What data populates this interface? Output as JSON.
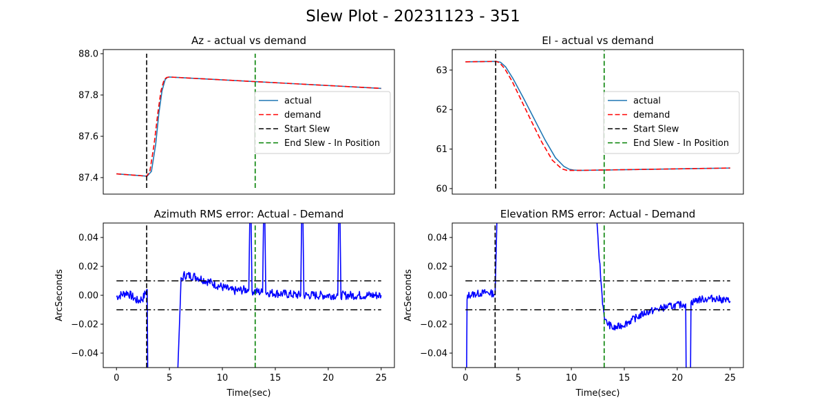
{
  "suptitle": "Slew Plot - 20231123 - 351",
  "chart_data": [
    {
      "id": "az_pos",
      "type": "line",
      "title": "Az - actual vs demand",
      "xlabel": "",
      "ylabel": "",
      "xlim": [
        -1.25,
        26.25
      ],
      "ylim": [
        87.32,
        88.02
      ],
      "xticks": [],
      "yticks": [
        87.4,
        87.6,
        87.8,
        88.0
      ],
      "ytick_labels": [
        "87.4",
        "87.6",
        "87.8",
        "88.0"
      ],
      "legend_location": "center right",
      "series": [
        {
          "name": "actual",
          "color": "#1f77b4",
          "style": "solid",
          "x": [
            0,
            2.9,
            3.3,
            3.7,
            4.0,
            4.3,
            4.6,
            4.8,
            5.0,
            25
          ],
          "y": [
            87.418,
            87.407,
            87.43,
            87.56,
            87.71,
            87.82,
            87.875,
            87.885,
            87.887,
            87.832
          ]
        },
        {
          "name": "demand",
          "color": "#ff0000",
          "style": "dashed",
          "x": [
            0,
            2.85,
            3.15,
            3.55,
            3.9,
            4.2,
            4.5,
            4.75,
            5.0,
            25
          ],
          "y": [
            87.418,
            87.407,
            87.43,
            87.56,
            87.71,
            87.82,
            87.875,
            87.885,
            87.887,
            87.832
          ]
        },
        {
          "name": "Start Slew",
          "color": "#000000",
          "style": "dashed",
          "x": [
            2.85,
            2.85
          ],
          "y": [
            87.35,
            88.0
          ]
        },
        {
          "name": "End Slew - In Position",
          "color": "#008000",
          "style": "dashed",
          "x": [
            13.1,
            13.1
          ],
          "y": [
            87.35,
            88.0
          ]
        }
      ]
    },
    {
      "id": "el_pos",
      "type": "line",
      "title": "El - actual vs demand",
      "xlabel": "",
      "ylabel": "",
      "xlim": [
        -1.25,
        26.25
      ],
      "ylim": [
        59.86,
        63.52
      ],
      "xticks": [],
      "yticks": [
        60,
        61,
        62,
        63
      ],
      "ytick_labels": [
        "60",
        "61",
        "62",
        "63"
      ],
      "legend_location": "center right",
      "series": [
        {
          "name": "actual",
          "color": "#1f77b4",
          "style": "solid",
          "x": [
            0,
            2.9,
            3.3,
            3.8,
            4.5,
            5.5,
            6.5,
            7.5,
            8.5,
            9.3,
            9.8,
            10.2,
            10.7,
            25
          ],
          "y": [
            63.21,
            63.22,
            63.2,
            63.08,
            62.78,
            62.28,
            61.76,
            61.24,
            60.78,
            60.56,
            60.49,
            60.47,
            60.46,
            60.52
          ]
        },
        {
          "name": "demand",
          "color": "#ff0000",
          "style": "dashed",
          "x": [
            0,
            2.9,
            3.2,
            3.7,
            4.4,
            5.3,
            6.2,
            7.2,
            8.2,
            9.1,
            9.6,
            10.0,
            10.5,
            25
          ],
          "y": [
            63.21,
            63.22,
            63.19,
            63.04,
            62.72,
            62.22,
            61.72,
            61.18,
            60.72,
            60.5,
            60.46,
            60.46,
            60.46,
            60.52
          ]
        },
        {
          "name": "Start Slew",
          "color": "#000000",
          "style": "dashed",
          "x": [
            2.85,
            2.85
          ],
          "y": [
            60.0,
            63.5
          ]
        },
        {
          "name": "End Slew - In Position",
          "color": "#008000",
          "style": "dashed",
          "x": [
            13.1,
            13.1
          ],
          "y": [
            60.0,
            63.5
          ]
        }
      ]
    },
    {
      "id": "az_err",
      "type": "line",
      "title": "Azimuth RMS error: Actual - Demand",
      "xlabel": "Time(sec)",
      "ylabel": "ArcSeconds",
      "xlim": [
        -1.25,
        26.25
      ],
      "ylim": [
        -0.05,
        0.05
      ],
      "xticks": [
        0,
        5,
        10,
        15,
        20,
        25
      ],
      "xtick_labels": [
        "0",
        "5",
        "10",
        "15",
        "20",
        "25"
      ],
      "yticks": [
        -0.04,
        -0.02,
        0.0,
        0.02,
        0.04
      ],
      "ytick_labels": [
        "−0.04",
        "−0.02",
        "0.00",
        "0.02",
        "0.04"
      ],
      "series": [
        {
          "name": "",
          "color": "#0000ff",
          "style": "solid",
          "noise_seed": 7,
          "x": [
            0,
            1.0,
            2.0,
            2.5,
            2.9,
            2.95,
            3.0,
            3.05,
            3.1,
            5.7,
            5.8,
            5.95,
            6.1,
            6.4,
            7.5,
            9.5,
            11,
            12.5,
            12.6,
            12.7,
            12.8,
            13.8,
            13.9,
            14.0,
            14.1,
            17.4,
            17.5,
            17.6,
            17.7,
            20.9,
            21.0,
            21.1,
            21.2,
            25
          ],
          "y": [
            -0.001,
            0.002,
            -0.004,
            -0.002,
            0.004,
            -0.05,
            -0.06,
            -0.06,
            -0.06,
            -0.06,
            -0.05,
            -0.02,
            0.01,
            0.014,
            0.013,
            0.007,
            0.003,
            0.004,
            0.06,
            0.06,
            0.003,
            0.002,
            0.06,
            0.06,
            0.002,
            0.0,
            0.06,
            0.06,
            0.0,
            0.0,
            0.06,
            0.06,
            0.0,
            0.0
          ],
          "noise": 0.003
        },
        {
          "name": "",
          "color": "#000000",
          "style": "dashdot",
          "x": [
            0,
            25
          ],
          "y": [
            0.01,
            0.01
          ]
        },
        {
          "name": "",
          "color": "#000000",
          "style": "dashdot",
          "x": [
            0,
            25
          ],
          "y": [
            -0.01,
            -0.01
          ]
        },
        {
          "name": "",
          "color": "#000000",
          "style": "dashed",
          "x": [
            2.85,
            2.85
          ],
          "y": [
            -0.05,
            0.05
          ]
        },
        {
          "name": "",
          "color": "#008000",
          "style": "dashed",
          "x": [
            13.1,
            13.1
          ],
          "y": [
            -0.05,
            0.05
          ]
        }
      ]
    },
    {
      "id": "el_err",
      "type": "line",
      "title": "Elevation RMS error: Actual - Demand",
      "xlabel": "Time(sec)",
      "ylabel": "ArcSeconds",
      "xlim": [
        -1.25,
        26.25
      ],
      "ylim": [
        -0.05,
        0.05
      ],
      "xticks": [
        0,
        5,
        10,
        15,
        20,
        25
      ],
      "xtick_labels": [
        "0",
        "5",
        "10",
        "15",
        "20",
        "25"
      ],
      "yticks": [
        -0.04,
        -0.02,
        0.0,
        0.02,
        0.04
      ],
      "ytick_labels": [
        "−0.04",
        "−0.02",
        "0.00",
        "0.02",
        "0.04"
      ],
      "series": [
        {
          "name": "",
          "color": "#0000ff",
          "style": "solid",
          "noise_seed": 13,
          "x": [
            0,
            0.05,
            0.1,
            0.15,
            0.2,
            1.0,
            2.0,
            2.8,
            3.0,
            3.05,
            3.1,
            3.15,
            3.2,
            12.3,
            12.5,
            12.7,
            12.9,
            13.0,
            13.2,
            14.0,
            15.0,
            17.0,
            19.0,
            20.8,
            20.85,
            20.9,
            21.2,
            21.25,
            21.3,
            22.0,
            23.5,
            25
          ],
          "y": [
            -0.06,
            -0.06,
            -0.06,
            -0.005,
            0.0,
            0.001,
            0.002,
            0.001,
            0.06,
            0.06,
            0.06,
            0.06,
            0.06,
            0.06,
            0.04,
            0.02,
            0.0,
            -0.008,
            -0.018,
            -0.023,
            -0.02,
            -0.012,
            -0.008,
            -0.006,
            -0.06,
            -0.06,
            -0.06,
            -0.06,
            -0.005,
            -0.003,
            -0.002,
            -0.004
          ],
          "noise": 0.0025
        },
        {
          "name": "",
          "color": "#000000",
          "style": "dashdot",
          "x": [
            0,
            25
          ],
          "y": [
            0.01,
            0.01
          ]
        },
        {
          "name": "",
          "color": "#000000",
          "style": "dashdot",
          "x": [
            0,
            25
          ],
          "y": [
            -0.01,
            -0.01
          ]
        },
        {
          "name": "",
          "color": "#000000",
          "style": "dashed",
          "x": [
            2.8,
            2.8
          ],
          "y": [
            -0.05,
            0.05
          ]
        },
        {
          "name": "",
          "color": "#008000",
          "style": "dashed",
          "x": [
            13.1,
            13.1
          ],
          "y": [
            -0.05,
            0.05
          ]
        }
      ]
    }
  ]
}
